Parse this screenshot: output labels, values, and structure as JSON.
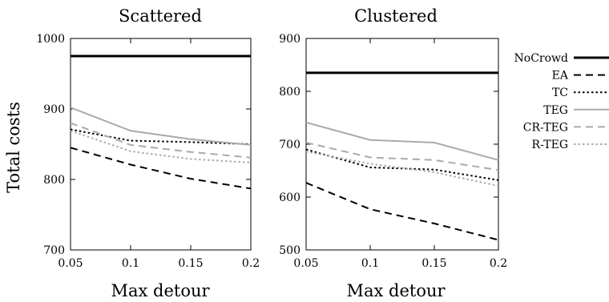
{
  "legend": {
    "placement": "right",
    "entries": [
      {
        "label": "NoCrowd",
        "color": "#000000",
        "dash": "solid",
        "weight": "bold"
      },
      {
        "label": "EA",
        "color": "#000000",
        "dash": "dashed",
        "weight": "normal"
      },
      {
        "label": "TC",
        "color": "#000000",
        "dash": "dotted",
        "weight": "normal"
      },
      {
        "label": "TEG",
        "color": "#aaaaaa",
        "dash": "solid",
        "weight": "normal"
      },
      {
        "label": "CR-TEG",
        "color": "#aaaaaa",
        "dash": "dashed",
        "weight": "normal"
      },
      {
        "label": "R-TEG",
        "color": "#aaaaaa",
        "dash": "dotted",
        "weight": "normal"
      }
    ]
  },
  "chart_data": [
    {
      "type": "line",
      "title": "Scattered",
      "xlabel": "Max detour",
      "ylabel": "Total costs",
      "x": [
        0.05,
        0.1,
        0.15,
        0.2
      ],
      "x_ticks": [
        "0.05",
        "0.1",
        "0.15",
        "0.2"
      ],
      "xlim": [
        0.05,
        0.2
      ],
      "y_ticks": [
        "700",
        "800",
        "900",
        "1000"
      ],
      "ylim": [
        700,
        1000
      ],
      "grid": false,
      "series": [
        {
          "name": "NoCrowd",
          "values": [
            975,
            975,
            975,
            975
          ]
        },
        {
          "name": "EA",
          "values": [
            845,
            821,
            801,
            787
          ]
        },
        {
          "name": "TC",
          "values": [
            871,
            855,
            853,
            850
          ]
        },
        {
          "name": "TEG",
          "values": [
            902,
            869,
            857,
            849
          ]
        },
        {
          "name": "CR-TEG",
          "values": [
            880,
            849,
            839,
            831
          ]
        },
        {
          "name": "R-TEG",
          "values": [
            869,
            840,
            829,
            824
          ]
        }
      ]
    },
    {
      "type": "line",
      "title": "Clustered",
      "xlabel": "Max detour",
      "ylabel": "",
      "x": [
        0.05,
        0.1,
        0.15,
        0.2
      ],
      "x_ticks": [
        "0.05",
        "0.1",
        "0.15",
        "0.2"
      ],
      "xlim": [
        0.05,
        0.2
      ],
      "y_ticks": [
        "500",
        "600",
        "700",
        "800",
        "900"
      ],
      "ylim": [
        500,
        900
      ],
      "grid": false,
      "series": [
        {
          "name": "NoCrowd",
          "values": [
            835,
            835,
            835,
            835
          ]
        },
        {
          "name": "EA",
          "values": [
            627,
            577,
            550,
            519
          ]
        },
        {
          "name": "TC",
          "values": [
            690,
            656,
            652,
            632
          ]
        },
        {
          "name": "TEG",
          "values": [
            741,
            708,
            703,
            670
          ]
        },
        {
          "name": "CR-TEG",
          "values": [
            703,
            675,
            670,
            651
          ]
        },
        {
          "name": "R-TEG",
          "values": [
            686,
            663,
            647,
            621
          ]
        }
      ]
    }
  ]
}
